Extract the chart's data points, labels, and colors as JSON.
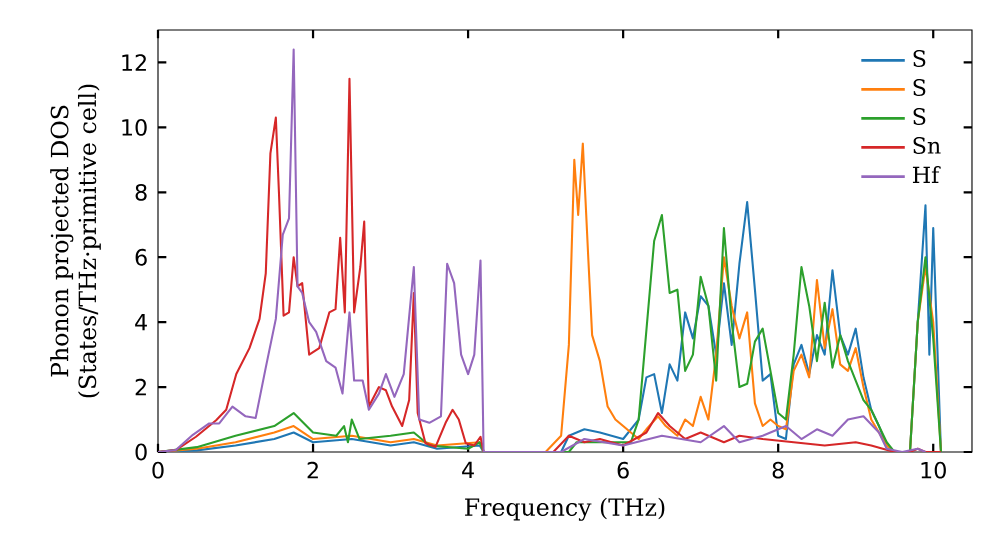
{
  "chart_data": {
    "type": "line",
    "xlabel": "Frequency (THz)",
    "ylabel": "Phonon projected DOS (States/THz·primitive cell)",
    "xlim": [
      0,
      10.5
    ],
    "ylim": [
      0,
      13
    ],
    "xticks": [
      0,
      2,
      4,
      6,
      8,
      10
    ],
    "yticks": [
      0,
      2,
      4,
      6,
      8,
      10,
      12
    ],
    "legend": "top right",
    "grid": false,
    "marker": "none",
    "line_style": "solid",
    "series": [
      {
        "name": "S",
        "color": "#1f77b4",
        "x": [
          0,
          0.5,
          1.0,
          1.5,
          1.75,
          2.0,
          2.5,
          3.0,
          3.3,
          3.6,
          4.15,
          4.2,
          5.2,
          5.3,
          5.5,
          5.7,
          6.0,
          6.2,
          6.3,
          6.4,
          6.5,
          6.6,
          6.7,
          6.8,
          6.9,
          7.0,
          7.1,
          7.2,
          7.3,
          7.4,
          7.5,
          7.6,
          7.7,
          7.8,
          7.9,
          8.0,
          8.1,
          8.2,
          8.3,
          8.4,
          8.5,
          8.6,
          8.7,
          8.8,
          8.9,
          9.0,
          9.1,
          9.2,
          9.3,
          9.4,
          9.5,
          9.7,
          9.8,
          9.9,
          9.95,
          10.0,
          10.1
        ],
        "values": [
          0,
          0.05,
          0.2,
          0.4,
          0.6,
          0.3,
          0.4,
          0.2,
          0.3,
          0.1,
          0.2,
          0,
          0,
          0.5,
          0.7,
          0.6,
          0.4,
          1.0,
          2.3,
          2.4,
          1.2,
          2.7,
          2.2,
          4.3,
          3.5,
          4.8,
          4.5,
          3.0,
          5.2,
          3.3,
          5.8,
          7.7,
          5.0,
          2.2,
          2.4,
          0.5,
          0.4,
          2.7,
          3.3,
          2.4,
          3.6,
          3.0,
          5.6,
          3.6,
          3.0,
          3.8,
          2.3,
          1.3,
          0.8,
          0.2,
          0,
          0,
          4.0,
          7.6,
          3.0,
          6.9,
          0
        ]
      },
      {
        "name": "S",
        "color": "#ff7f0e",
        "x": [
          0,
          0.5,
          1.0,
          1.5,
          1.75,
          2.0,
          2.5,
          3.0,
          3.3,
          3.6,
          4.15,
          4.2,
          5.0,
          5.2,
          5.3,
          5.37,
          5.42,
          5.48,
          5.55,
          5.6,
          5.7,
          5.8,
          5.9,
          6.0,
          6.2,
          6.3,
          6.45,
          6.55,
          6.7,
          6.8,
          6.9,
          7.0,
          7.1,
          7.2,
          7.3,
          7.4,
          7.5,
          7.6,
          7.7,
          7.8,
          7.9,
          8.0,
          8.1,
          8.2,
          8.3,
          8.4,
          8.5,
          8.6,
          8.7,
          8.8,
          8.9,
          9.0,
          9.1,
          9.2,
          9.3,
          9.4,
          9.5,
          9.7,
          9.8,
          9.9,
          10.0,
          10.1
        ],
        "values": [
          0,
          0.1,
          0.3,
          0.6,
          0.8,
          0.4,
          0.5,
          0.3,
          0.4,
          0.2,
          0.3,
          0,
          0,
          0.5,
          3.3,
          9.0,
          7.3,
          9.5,
          6.0,
          3.6,
          2.8,
          1.4,
          1.0,
          0.8,
          0.4,
          0.7,
          1.1,
          0.8,
          0.5,
          1.0,
          0.8,
          1.7,
          1.0,
          3.0,
          6.0,
          4.5,
          3.5,
          4.3,
          1.5,
          0.8,
          1.0,
          0.8,
          0.7,
          2.5,
          3.0,
          2.3,
          5.3,
          3.2,
          4.4,
          2.7,
          2.5,
          3.2,
          2.0,
          1.0,
          0.6,
          0.2,
          0,
          0,
          4.0,
          5.7,
          4.0,
          0
        ]
      },
      {
        "name": "S",
        "color": "#2ca02c",
        "x": [
          0,
          0.5,
          1.0,
          1.5,
          1.75,
          2.0,
          2.3,
          2.4,
          2.45,
          2.5,
          2.6,
          3.0,
          3.3,
          3.5,
          4.0,
          4.15,
          4.2,
          5.3,
          5.4,
          6.1,
          6.2,
          6.4,
          6.5,
          6.6,
          6.7,
          6.8,
          6.9,
          7.0,
          7.1,
          7.2,
          7.3,
          7.4,
          7.5,
          7.6,
          7.7,
          7.8,
          7.9,
          8.0,
          8.1,
          8.2,
          8.3,
          8.4,
          8.5,
          8.6,
          8.7,
          8.8,
          8.9,
          9.0,
          9.1,
          9.2,
          9.3,
          9.4,
          9.5,
          9.7,
          9.8,
          9.9,
          10.0,
          10.1
        ],
        "values": [
          0,
          0.15,
          0.5,
          0.8,
          1.2,
          0.6,
          0.5,
          0.8,
          0.3,
          1.0,
          0.4,
          0.5,
          0.6,
          0.2,
          0.1,
          0.3,
          0,
          0,
          0.3,
          0.3,
          1.0,
          6.5,
          7.3,
          4.9,
          5.0,
          2.5,
          3.0,
          5.4,
          4.5,
          2.2,
          6.9,
          4.0,
          2.0,
          2.1,
          3.4,
          3.8,
          2.5,
          1.2,
          1.0,
          3.0,
          5.7,
          4.5,
          2.8,
          4.6,
          2.6,
          3.6,
          2.8,
          2.2,
          1.6,
          1.3,
          0.8,
          0.3,
          0,
          0,
          4.0,
          6.0,
          3.5,
          0
        ]
      },
      {
        "name": "Sn",
        "color": "#d62728",
        "x": [
          0,
          0.23,
          0.49,
          0.75,
          0.88,
          1.01,
          1.18,
          1.31,
          1.39,
          1.45,
          1.52,
          1.56,
          1.62,
          1.69,
          1.75,
          1.8,
          1.86,
          1.95,
          2.08,
          2.21,
          2.29,
          2.35,
          2.41,
          2.47,
          2.53,
          2.61,
          2.66,
          2.72,
          2.85,
          2.94,
          3.02,
          3.15,
          3.24,
          3.3,
          3.35,
          3.45,
          3.58,
          3.71,
          3.8,
          3.88,
          3.97,
          4.08,
          4.16,
          4.2,
          5.1,
          5.3,
          5.5,
          5.7,
          6.0,
          6.3,
          6.45,
          6.6,
          6.8,
          7.0,
          7.3,
          7.5,
          7.8,
          8.2,
          8.6,
          9.0,
          9.2,
          9.5,
          9.7,
          9.8,
          9.9,
          10.1
        ],
        "values": [
          0,
          0.06,
          0.47,
          0.98,
          1.3,
          2.4,
          3.2,
          4.1,
          5.5,
          9.2,
          10.3,
          8.0,
          4.2,
          4.3,
          6.0,
          5.1,
          5.2,
          3.0,
          3.2,
          4.3,
          4.4,
          6.6,
          4.3,
          11.5,
          4.3,
          5.7,
          7.1,
          1.4,
          2.0,
          1.9,
          1.4,
          0.8,
          1.6,
          4.9,
          1.2,
          0.27,
          0.16,
          0.9,
          1.3,
          1.0,
          0.27,
          0.2,
          0.47,
          0,
          0,
          0.5,
          0.3,
          0.4,
          0.2,
          0.6,
          1.2,
          0.8,
          0.4,
          0.6,
          0.3,
          0.5,
          0.4,
          0.3,
          0.2,
          0.3,
          0.2,
          0,
          0,
          0.1,
          0,
          0
        ]
      },
      {
        "name": "Hf",
        "color": "#9467bd",
        "x": [
          0,
          0.23,
          0.45,
          0.66,
          0.79,
          0.96,
          1.13,
          1.26,
          1.39,
          1.52,
          1.61,
          1.69,
          1.75,
          1.8,
          1.86,
          1.95,
          2.04,
          2.17,
          2.29,
          2.38,
          2.47,
          2.53,
          2.64,
          2.72,
          2.85,
          2.94,
          3.05,
          3.17,
          3.3,
          3.37,
          3.5,
          3.65,
          3.73,
          3.82,
          3.91,
          4.0,
          4.08,
          4.16,
          4.2,
          5.2,
          5.5,
          6.0,
          6.5,
          7.0,
          7.3,
          7.5,
          7.8,
          8.1,
          8.3,
          8.5,
          8.7,
          8.9,
          9.1,
          9.3,
          9.4,
          9.6,
          9.8,
          9.9
        ],
        "values": [
          0,
          0.06,
          0.53,
          0.88,
          0.88,
          1.4,
          1.1,
          1.05,
          2.6,
          4.1,
          6.7,
          7.2,
          12.4,
          5.1,
          4.9,
          4.0,
          3.7,
          2.8,
          2.6,
          1.8,
          4.3,
          2.2,
          2.2,
          1.3,
          1.8,
          2.4,
          1.7,
          2.4,
          5.7,
          1.0,
          0.9,
          1.1,
          5.8,
          5.2,
          3.0,
          2.4,
          3.0,
          5.9,
          0,
          0,
          0.4,
          0.2,
          0.5,
          0.3,
          0.8,
          0.3,
          0.5,
          0.8,
          0.4,
          0.7,
          0.5,
          1.0,
          1.1,
          0.6,
          0.1,
          0,
          0.1,
          0
        ]
      }
    ]
  }
}
